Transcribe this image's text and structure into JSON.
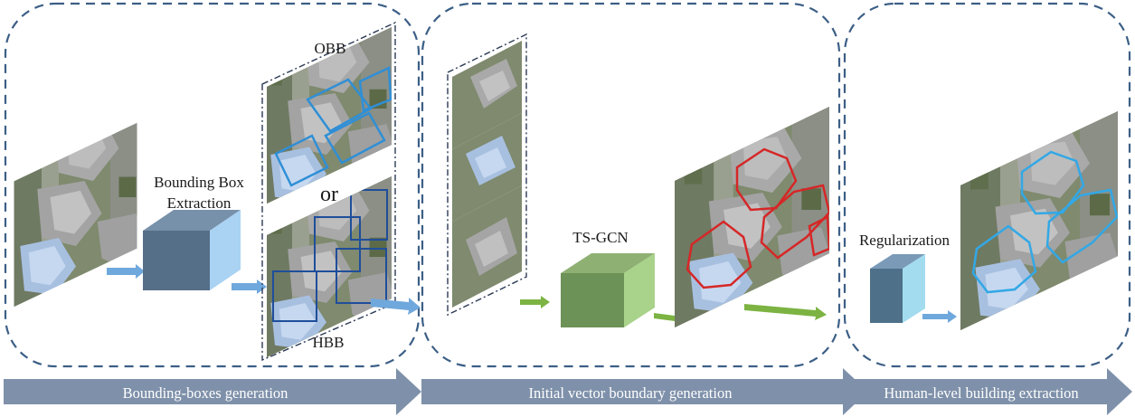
{
  "labels": {
    "obb": "OBB",
    "or": "or",
    "hbb": "HBB",
    "bbox_line1": "Bounding Box",
    "bbox_line2": "Extraction",
    "tsgcn": "TS-GCN",
    "regularization": "Regularization"
  },
  "stages": [
    {
      "label": "Bounding-boxes generation"
    },
    {
      "label": "Initial vector boundary generation"
    },
    {
      "label": "Human-level building extraction"
    }
  ],
  "colors": {
    "dash_border": "#3c5f86",
    "stage_arrow": "#7f91aa",
    "cube_slate": "#566f89",
    "cube_light_blue": "#a9d2f3",
    "cube_green": "#6d9257",
    "cube_green_light": "#a9d28a",
    "cube_cyan": "#a3dcef",
    "obb_outline": "#2f8fd6",
    "hbb_outline": "#1f4e9a",
    "vector_outline": "#d62727",
    "regular_outline": "#32a8e6"
  },
  "icons": {
    "panels": "aerial-image-icon",
    "boxes": "cube-icon",
    "arrows": "arrow-icon"
  }
}
